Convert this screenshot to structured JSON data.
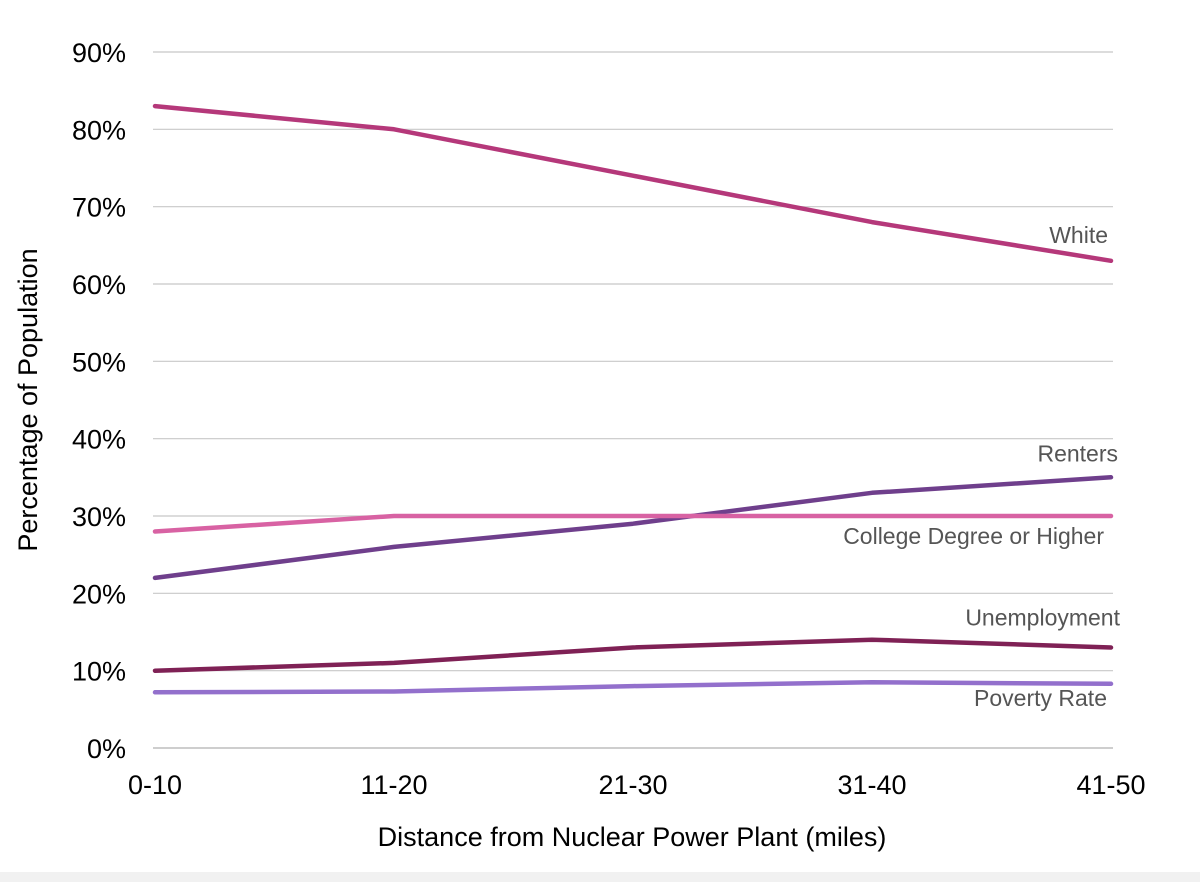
{
  "chart_data": {
    "type": "line",
    "title": "",
    "xlabel": "Distance from Nuclear Power Plant (miles)",
    "ylabel": "Percentage of Population",
    "categories": [
      "0-10",
      "11-20",
      "21-30",
      "31-40",
      "41-50"
    ],
    "ylim": [
      0,
      90
    ],
    "yticks": [
      0,
      10,
      20,
      30,
      40,
      50,
      60,
      70,
      80,
      90
    ],
    "ytick_labels": [
      "0%",
      "10%",
      "20%",
      "30%",
      "40%",
      "50%",
      "60%",
      "70%",
      "80%",
      "90%"
    ],
    "grid": true,
    "legend": "none",
    "series": [
      {
        "name": "White",
        "values": [
          83,
          80,
          74,
          68,
          63
        ],
        "color": "#b5387a"
      },
      {
        "name": "Renters",
        "values": [
          22,
          26,
          29,
          33,
          35
        ],
        "color": "#6f3f8c"
      },
      {
        "name": "College Degree or Higher",
        "values": [
          28,
          30,
          30,
          30,
          30
        ],
        "color": "#d862a3"
      },
      {
        "name": "Unemployment",
        "values": [
          10,
          11,
          13,
          14,
          13
        ],
        "color": "#7f2155"
      },
      {
        "name": "Poverty Rate",
        "values": [
          7.2,
          7.3,
          8,
          8.5,
          8.3
        ],
        "color": "#9370cc"
      }
    ]
  }
}
